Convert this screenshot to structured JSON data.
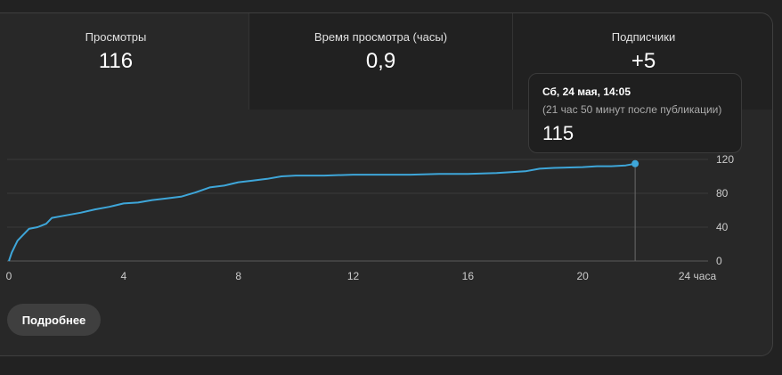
{
  "metrics": [
    {
      "label": "Просмотры",
      "value": "116"
    },
    {
      "label": "Время просмотра (часы)",
      "value": "0,9"
    },
    {
      "label": "Подписчики",
      "value": "+5"
    }
  ],
  "tooltip": {
    "date": "Сб, 24 мая, 14:05",
    "subtitle": "(21 час 50 минут после публикации)",
    "value": "115"
  },
  "details_label": "Подробнее",
  "colors": {
    "line": "#3ea6d9",
    "grid": "#3a3a3a",
    "background": "#282828"
  },
  "chart_data": {
    "type": "line",
    "xlabel": "",
    "ylabel": "",
    "x_tick_labels": [
      "0",
      "4",
      "8",
      "12",
      "16",
      "20",
      "24 часа"
    ],
    "x_ticks": [
      0,
      4,
      8,
      12,
      16,
      20,
      24
    ],
    "y_tick_labels": [
      "0",
      "40",
      "80",
      "120"
    ],
    "y_ticks": [
      0,
      40,
      80,
      120
    ],
    "xlim": [
      0,
      24
    ],
    "ylim": [
      0,
      120
    ],
    "grid": true,
    "highlight": {
      "x": 21.83,
      "y": 115
    },
    "series": [
      {
        "x": [
          0,
          0.1,
          0.3,
          0.5,
          0.7,
          1.0,
          1.3,
          1.5,
          2.0,
          2.5,
          3.0,
          3.5,
          4.0,
          4.5,
          5.0,
          5.5,
          6.0,
          6.5,
          7.0,
          7.5,
          8.0,
          8.5,
          9.0,
          9.5,
          10.0,
          11.0,
          12.0,
          13.0,
          14.0,
          15.0,
          16.0,
          17.0,
          18.0,
          18.5,
          19.0,
          20.0,
          20.5,
          21.0,
          21.5,
          21.83
        ],
        "y": [
          0,
          10,
          24,
          31,
          38,
          40,
          44,
          51,
          54,
          57,
          61,
          64,
          68,
          69,
          72,
          74,
          76,
          81,
          87,
          89,
          93,
          95,
          97,
          100,
          101,
          101,
          102,
          102,
          102,
          103,
          103,
          104,
          106,
          109,
          110,
          111,
          112,
          112,
          113,
          115
        ]
      }
    ]
  }
}
